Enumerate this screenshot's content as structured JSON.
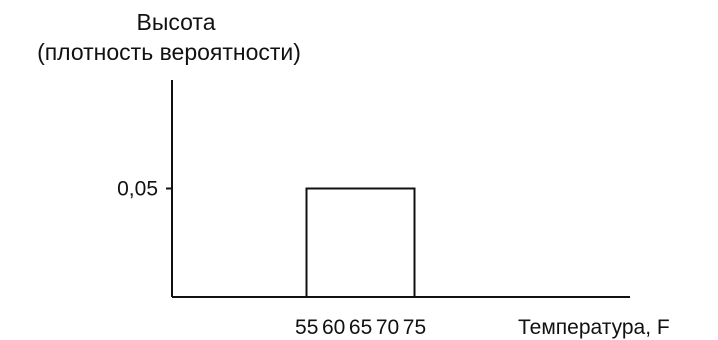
{
  "chart_data": {
    "type": "area",
    "ylabel_lines": [
      "Высота",
      "(плотность вероятности)"
    ],
    "xlabel": "Температура, F",
    "x_ticks": [
      "55",
      "60",
      "65",
      "70",
      "75"
    ],
    "y_ticks": [
      "0,05"
    ],
    "series": [
      {
        "x": [
          55,
          55,
          75,
          75
        ],
        "y": [
          0,
          0.05,
          0.05,
          0
        ]
      }
    ],
    "xlim": [
      30,
      115
    ],
    "ylim": [
      0,
      0.1
    ],
    "grid": false,
    "legend": "none"
  }
}
